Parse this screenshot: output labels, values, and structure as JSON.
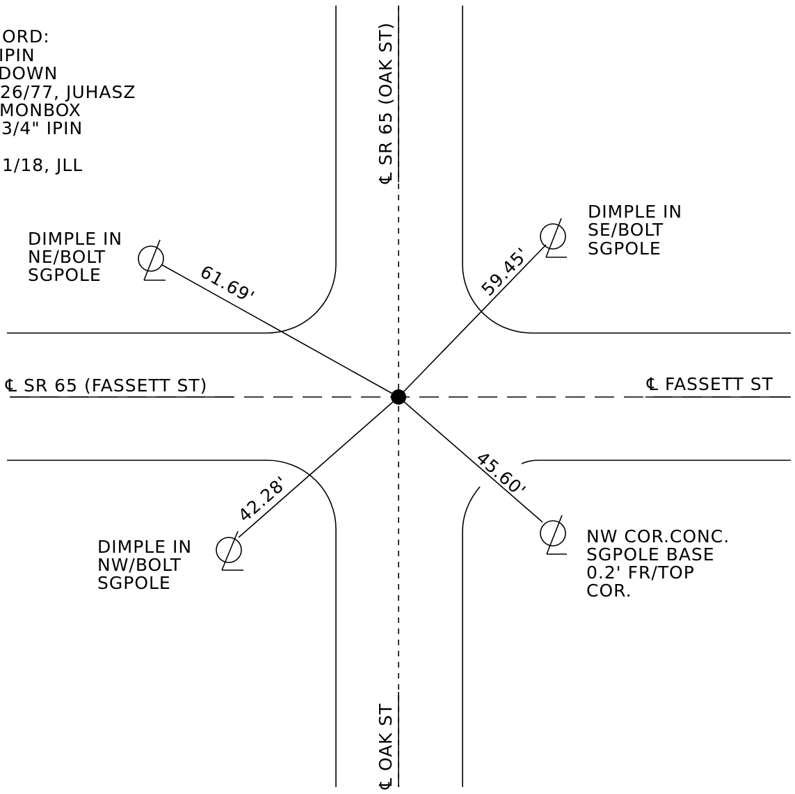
{
  "note": [
    "ORD:",
    "IPIN",
    "DOWN",
    "26/77, JUHASZ",
    "MONBOX",
    "3/4\" IPIN",
    "1/18, JLL"
  ],
  "centerline_labels": {
    "fassett_west": "℄ SR 65 (FASSETT ST)",
    "fassett_east": "℄ FASSETT ST",
    "oak_north": "℄ SR 65 (OAK ST)",
    "oak_south": "℄ OAK ST"
  },
  "ties": {
    "ne": {
      "lines": [
        "DIMPLE IN",
        "NE/BOLT",
        "SGPOLE"
      ],
      "distance": "61.69'"
    },
    "se": {
      "lines": [
        "DIMPLE IN",
        "SE/BOLT",
        "SGPOLE"
      ],
      "distance": "59.45'"
    },
    "nw": {
      "lines": [
        "DIMPLE IN",
        "NW/BOLT",
        "SGPOLE"
      ],
      "distance": "42.28'"
    },
    "conc": {
      "lines": [
        "NW COR.CONC.",
        "SGPOLE BASE",
        "0.2' FR/TOP",
        "COR."
      ],
      "distance": "45.60'"
    }
  },
  "colors": {
    "ink": "#000000",
    "paper": "#ffffff"
  }
}
